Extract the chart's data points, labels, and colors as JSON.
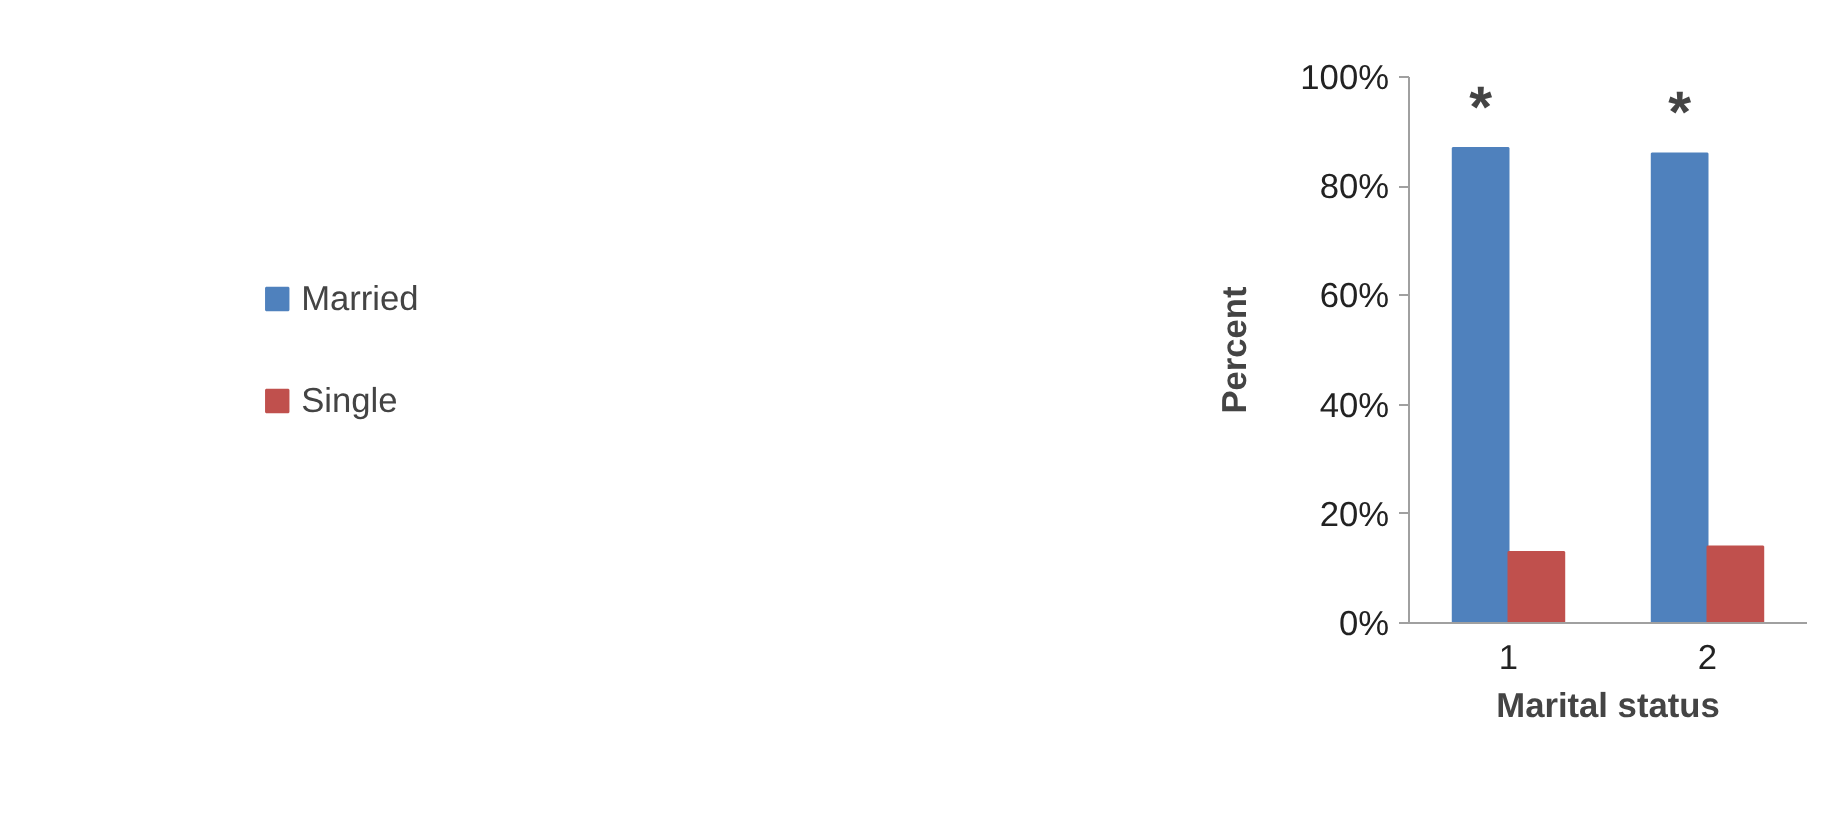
{
  "chart_data": {
    "type": "bar",
    "xlabel": "Marital status",
    "ylabel": "Percent",
    "categories": [
      "1",
      "2"
    ],
    "series": [
      {
        "name": "Married",
        "color": "#4f81bd",
        "values": [
          87,
          86
        ]
      },
      {
        "name": "Single",
        "color": "#c0504d",
        "values": [
          13,
          14
        ]
      }
    ],
    "ylim": [
      0,
      100
    ],
    "yticks": [
      {
        "value": 0,
        "label": "0%"
      },
      {
        "value": 20,
        "label": "20%"
      },
      {
        "value": 40,
        "label": "40%"
      },
      {
        "value": 60,
        "label": "60%"
      },
      {
        "value": 80,
        "label": "80%"
      },
      {
        "value": 100,
        "label": "100%"
      }
    ],
    "annotations": [
      "*",
      "*"
    ],
    "legend": "left",
    "grid": false
  }
}
